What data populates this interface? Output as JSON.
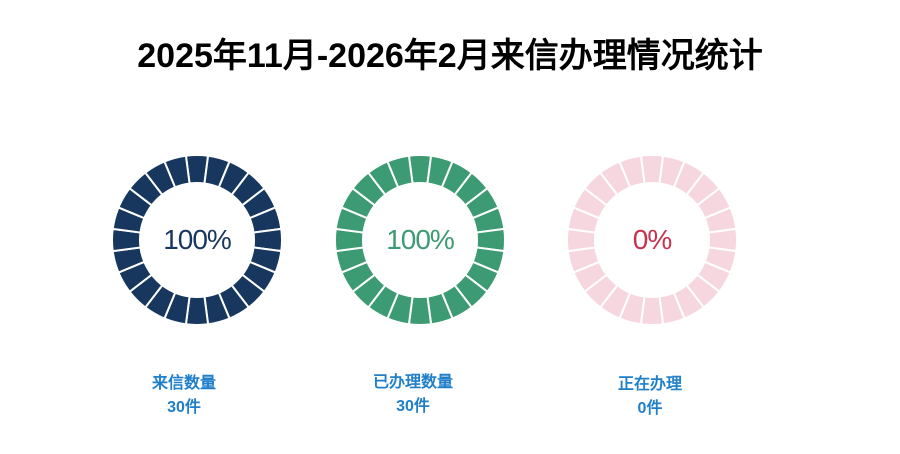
{
  "title": "2025年11月-2026年2月来信办理情况统计",
  "stats": [
    {
      "label": "来信数量",
      "count": "30件",
      "percent_text": "100%",
      "fraction": 1.0,
      "color": "#17375e",
      "track_color": "#f6d7df",
      "text_color": "#17375e"
    },
    {
      "label": "已办理数量",
      "count": "30件",
      "percent_text": "100%",
      "fraction": 1.0,
      "color": "#3c9b72",
      "track_color": "#f6d7df",
      "text_color": "#3c9b72"
    },
    {
      "label": "正在办理",
      "count": "0件",
      "percent_text": "0%",
      "fraction": 0.0,
      "color": "#c8314f",
      "track_color": "#f6d7df",
      "text_color": "#c8314f"
    }
  ]
}
